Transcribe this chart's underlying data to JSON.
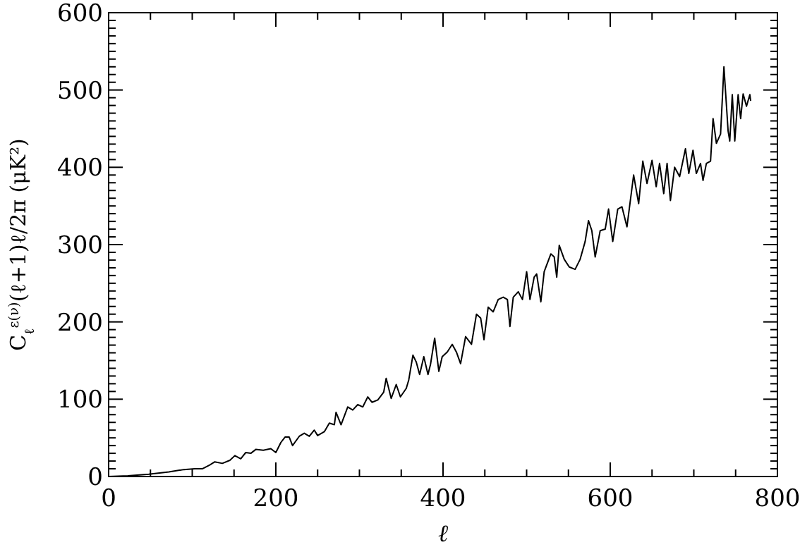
{
  "chart_data": {
    "type": "line",
    "xlabel": "ℓ",
    "ylabel": "C$_{ℓ}$$^{ε(ν)}$(ℓ+1)ℓ/2π  (μK²)",
    "xlim": [
      0,
      800
    ],
    "ylim": [
      0,
      600
    ],
    "xticks": [
      0,
      {
        "value": 50,
        "label": null
      },
      200,
      {
        "value": 100,
        "label": null
      },
      {
        "value": 150,
        "label": null
      },
      {
        "value": 250,
        "label": null
      },
      {
        "value": 300,
        "label": null
      },
      {
        "value": 350,
        "label": null
      },
      400,
      {
        "value": 450,
        "label": null
      },
      {
        "value": 500,
        "label": null
      },
      {
        "value": 550,
        "label": null
      },
      600,
      {
        "value": 650,
        "label": null
      },
      {
        "value": 700,
        "label": null
      },
      {
        "value": 750,
        "label": null
      },
      800
    ],
    "yticks": [
      0,
      100,
      200,
      300,
      400,
      500,
      600,
      {
        "value": 10,
        "label": null
      },
      {
        "value": 20,
        "label": null
      },
      {
        "value": 30,
        "label": null
      },
      {
        "value": 40,
        "label": null
      },
      {
        "value": 50,
        "label": null
      },
      {
        "value": 60,
        "label": null
      },
      {
        "value": 70,
        "label": null
      },
      {
        "value": 80,
        "label": null
      },
      {
        "value": 90,
        "label": null
      },
      {
        "value": 110,
        "label": null
      },
      {
        "value": 120,
        "label": null
      },
      {
        "value": 130,
        "label": null
      },
      {
        "value": 140,
        "label": null
      },
      {
        "value": 150,
        "label": null
      },
      {
        "value": 160,
        "label": null
      },
      {
        "value": 170,
        "label": null
      },
      {
        "value": 180,
        "label": null
      },
      {
        "value": 190,
        "label": null
      },
      {
        "value": 210,
        "label": null
      },
      {
        "value": 220,
        "label": null
      },
      {
        "value": 230,
        "label": null
      },
      {
        "value": 240,
        "label": null
      },
      {
        "value": 250,
        "label": null
      },
      {
        "value": 260,
        "label": null
      },
      {
        "value": 270,
        "label": null
      },
      {
        "value": 280,
        "label": null
      },
      {
        "value": 290,
        "label": null
      },
      {
        "value": 310,
        "label": null
      },
      {
        "value": 320,
        "label": null
      },
      {
        "value": 330,
        "label": null
      },
      {
        "value": 340,
        "label": null
      },
      {
        "value": 350,
        "label": null
      },
      {
        "value": 360,
        "label": null
      },
      {
        "value": 370,
        "label": null
      },
      {
        "value": 380,
        "label": null
      },
      {
        "value": 390,
        "label": null
      },
      {
        "value": 410,
        "label": null
      },
      {
        "value": 420,
        "label": null
      },
      {
        "value": 430,
        "label": null
      },
      {
        "value": 440,
        "label": null
      },
      {
        "value": 450,
        "label": null
      },
      {
        "value": 460,
        "label": null
      },
      {
        "value": 470,
        "label": null
      },
      {
        "value": 480,
        "label": null
      },
      {
        "value": 490,
        "label": null
      },
      {
        "value": 510,
        "label": null
      },
      {
        "value": 520,
        "label": null
      },
      {
        "value": 530,
        "label": null
      },
      {
        "value": 540,
        "label": null
      },
      {
        "value": 550,
        "label": null
      },
      {
        "value": 560,
        "label": null
      },
      {
        "value": 570,
        "label": null
      },
      {
        "value": 580,
        "label": null
      },
      {
        "value": 590,
        "label": null
      }
    ],
    "grid": false,
    "marker": "none",
    "line_style": "solid",
    "series": [
      {
        "color": "#000000",
        "x": [
          0,
          23,
          48,
          72,
          90,
          103,
          112,
          121,
          127,
          136,
          145,
          151,
          158,
          164,
          170,
          176,
          185,
          194,
          200,
          206,
          211,
          216,
          220,
          228,
          234,
          240,
          246,
          250,
          258,
          264,
          270,
          272,
          278,
          286,
          292,
          298,
          304,
          310,
          315,
          322,
          329,
          332,
          338,
          344,
          349,
          356,
          359,
          364,
          368,
          372,
          377,
          382,
          385,
          390,
          395,
          399,
          405,
          411,
          416,
          421,
          427,
          434,
          440,
          445,
          449,
          454,
          460,
          466,
          472,
          477,
          480,
          484,
          490,
          495,
          500,
          504,
          509,
          512,
          517,
          521,
          529,
          533,
          536,
          539,
          545,
          551,
          558,
          564,
          570,
          574,
          578,
          582,
          588,
          594,
          598,
          603,
          609,
          614,
          620,
          628,
          634,
          639,
          644,
          650,
          655,
          659,
          664,
          668,
          672,
          677,
          683,
          690,
          694,
          699,
          703,
          708,
          711,
          715,
          720,
          723,
          727,
          732,
          736,
          741,
          743,
          746,
          749,
          753,
          756,
          759,
          763,
          767,
          768
        ],
        "values": [
          0,
          1,
          3,
          6,
          9,
          10,
          10,
          15,
          19,
          17,
          21,
          27,
          23,
          31,
          30,
          35,
          34,
          36,
          31,
          44,
          51,
          51,
          40,
          52,
          56,
          52,
          60,
          53,
          58,
          69,
          67,
          83,
          67,
          90,
          86,
          93,
          90,
          103,
          96,
          99,
          109,
          127,
          101,
          119,
          103,
          114,
          125,
          157,
          148,
          132,
          155,
          132,
          145,
          179,
          136,
          155,
          161,
          171,
          161,
          146,
          181,
          171,
          210,
          205,
          177,
          219,
          213,
          229,
          232,
          229,
          194,
          232,
          239,
          229,
          265,
          229,
          258,
          262,
          226,
          265,
          288,
          284,
          258,
          299,
          281,
          271,
          268,
          281,
          304,
          331,
          318,
          284,
          318,
          320,
          346,
          304,
          346,
          349,
          323,
          390,
          353,
          408,
          379,
          409,
          375,
          405,
          366,
          405,
          357,
          400,
          388,
          424,
          392,
          422,
          392,
          405,
          383,
          405,
          408,
          463,
          431,
          443,
          530,
          447,
          434,
          494,
          434,
          494,
          463,
          495,
          479,
          494,
          486
        ]
      }
    ]
  }
}
